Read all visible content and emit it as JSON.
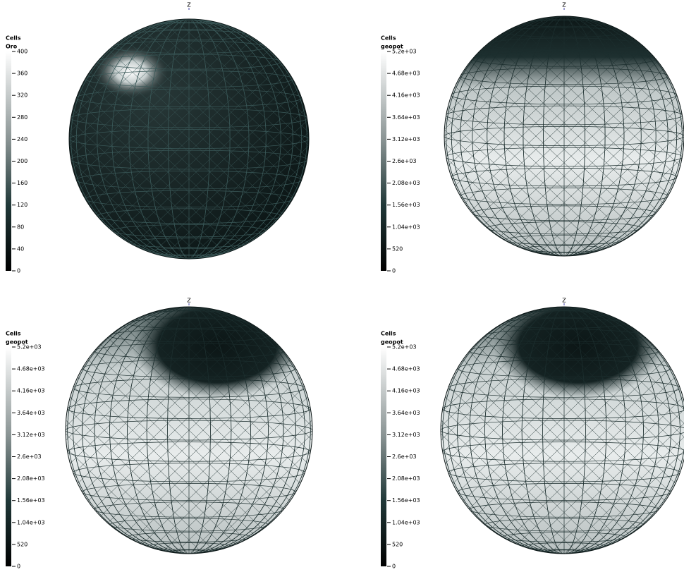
{
  "panels": [
    {
      "axis_label": "Z",
      "legend": {
        "title": "Cells",
        "variable": "Oro",
        "ticks": [
          "400",
          "360",
          "320",
          "280",
          "240",
          "200",
          "160",
          "120",
          "80",
          "40",
          "0"
        ]
      }
    },
    {
      "axis_label": "Z",
      "legend": {
        "title": "Cells",
        "variable": "geopot",
        "ticks": [
          "5.2e+03",
          "4.68e+03",
          "4.16e+03",
          "3.64e+03",
          "3.12e+03",
          "2.6e+03",
          "2.08e+03",
          "1.56e+03",
          "1.04e+03",
          "520",
          "0"
        ]
      }
    },
    {
      "axis_label": "Z",
      "legend": {
        "title": "Cells",
        "variable": "geopot",
        "ticks": [
          "5.2e+03",
          "4.68e+03",
          "4.16e+03",
          "3.64e+03",
          "3.12e+03",
          "2.6e+03",
          "2.08e+03",
          "1.56e+03",
          "1.04e+03",
          "520",
          "0"
        ]
      }
    },
    {
      "axis_label": "Z",
      "legend": {
        "title": "Cells",
        "variable": "geopot",
        "ticks": [
          "5.2e+03",
          "4.68e+03",
          "4.16e+03",
          "3.64e+03",
          "3.12e+03",
          "2.6e+03",
          "2.08e+03",
          "1.56e+03",
          "1.04e+03",
          "520",
          "0"
        ]
      }
    }
  ]
}
